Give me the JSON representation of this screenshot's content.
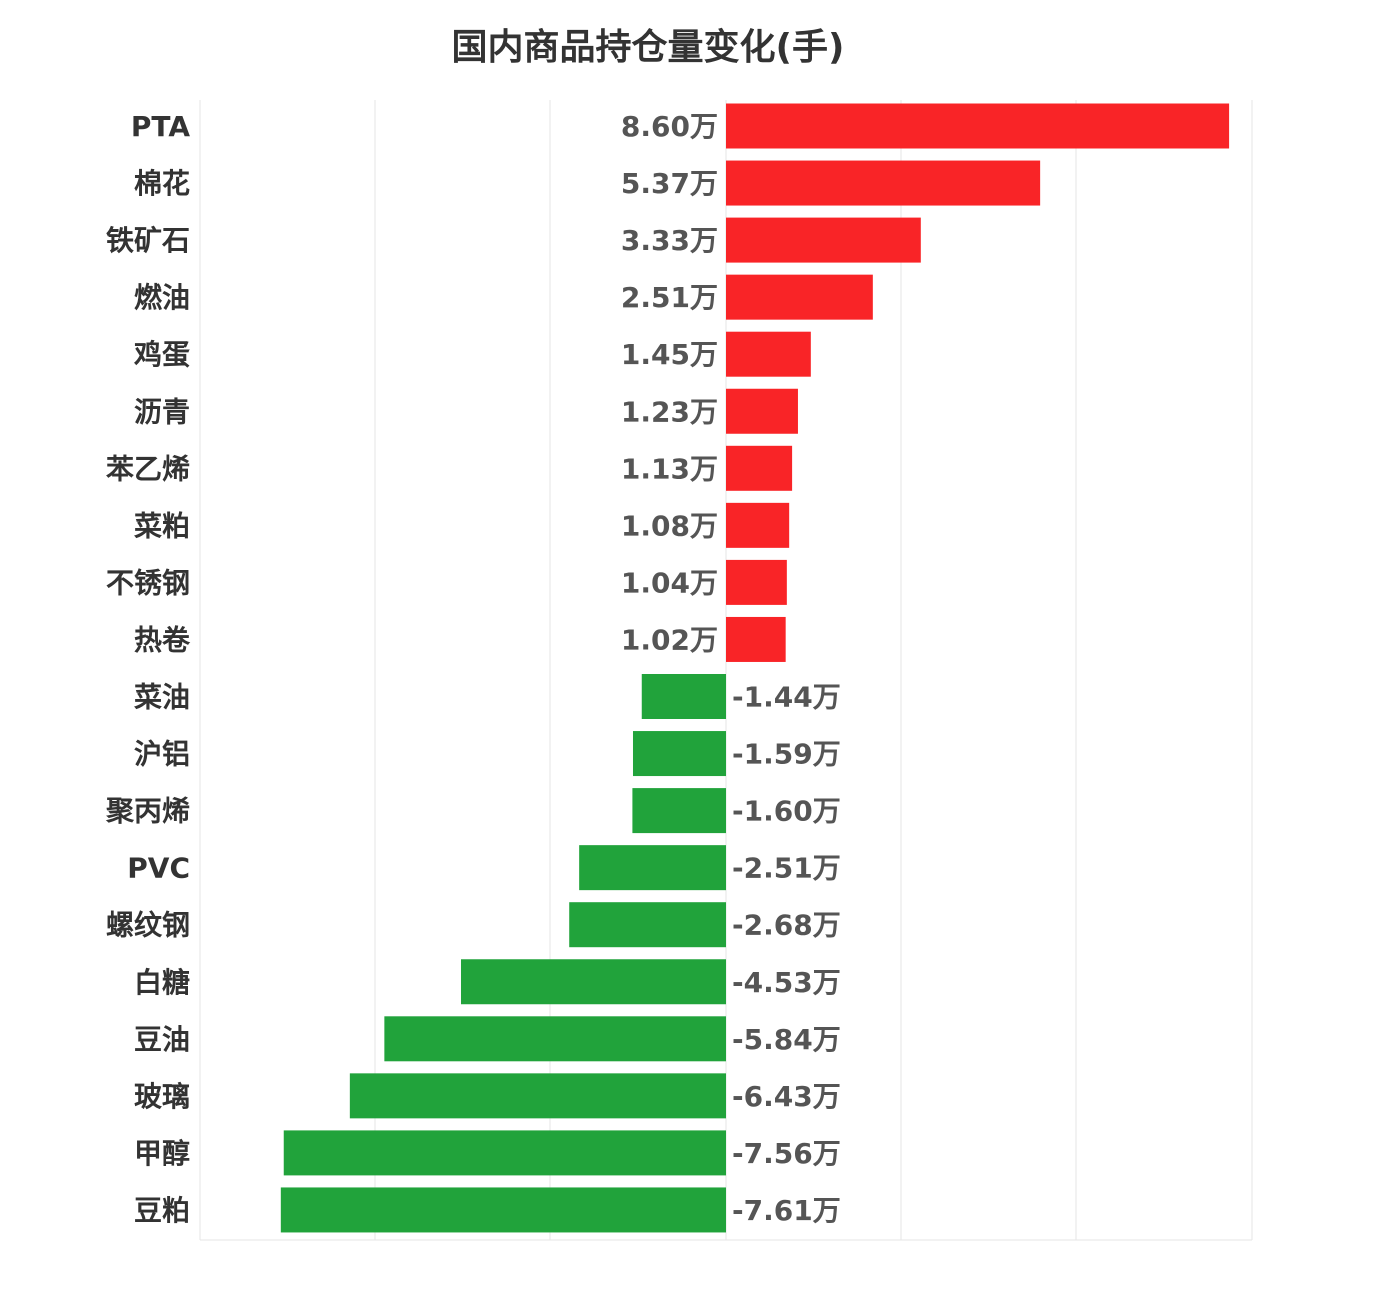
{
  "chart_data": {
    "type": "bar",
    "orientation": "horizontal",
    "title": "国内商品持仓量变化(手)",
    "xlabel": "",
    "ylabel": "",
    "unit_suffix": "万",
    "xlim": [
      -9,
      9
    ],
    "grid": true,
    "colors": {
      "positive": "#f92427",
      "negative": "#21a33b"
    },
    "categories": [
      "PTA",
      "棉花",
      "铁矿石",
      "燃油",
      "鸡蛋",
      "沥青",
      "苯乙烯",
      "菜粕",
      "不锈钢",
      "热卷",
      "菜油",
      "沪铝",
      "聚丙烯",
      "PVC",
      "螺纹钢",
      "白糖",
      "豆油",
      "玻璃",
      "甲醇",
      "豆粕"
    ],
    "values": [
      8.6,
      5.37,
      3.33,
      2.51,
      1.45,
      1.23,
      1.13,
      1.08,
      1.04,
      1.02,
      -1.44,
      -1.59,
      -1.6,
      -2.51,
      -2.68,
      -4.53,
      -5.84,
      -6.43,
      -7.56,
      -7.61
    ],
    "value_labels": [
      "8.60万",
      "5.37万",
      "3.33万",
      "2.51万",
      "1.45万",
      "1.23万",
      "1.13万",
      "1.08万",
      "1.04万",
      "1.02万",
      "-1.44万",
      "-1.59万",
      "-1.60万",
      "-2.51万",
      "-2.68万",
      "-4.53万",
      "-5.84万",
      "-6.43万",
      "-7.56万",
      "-7.61万"
    ]
  }
}
